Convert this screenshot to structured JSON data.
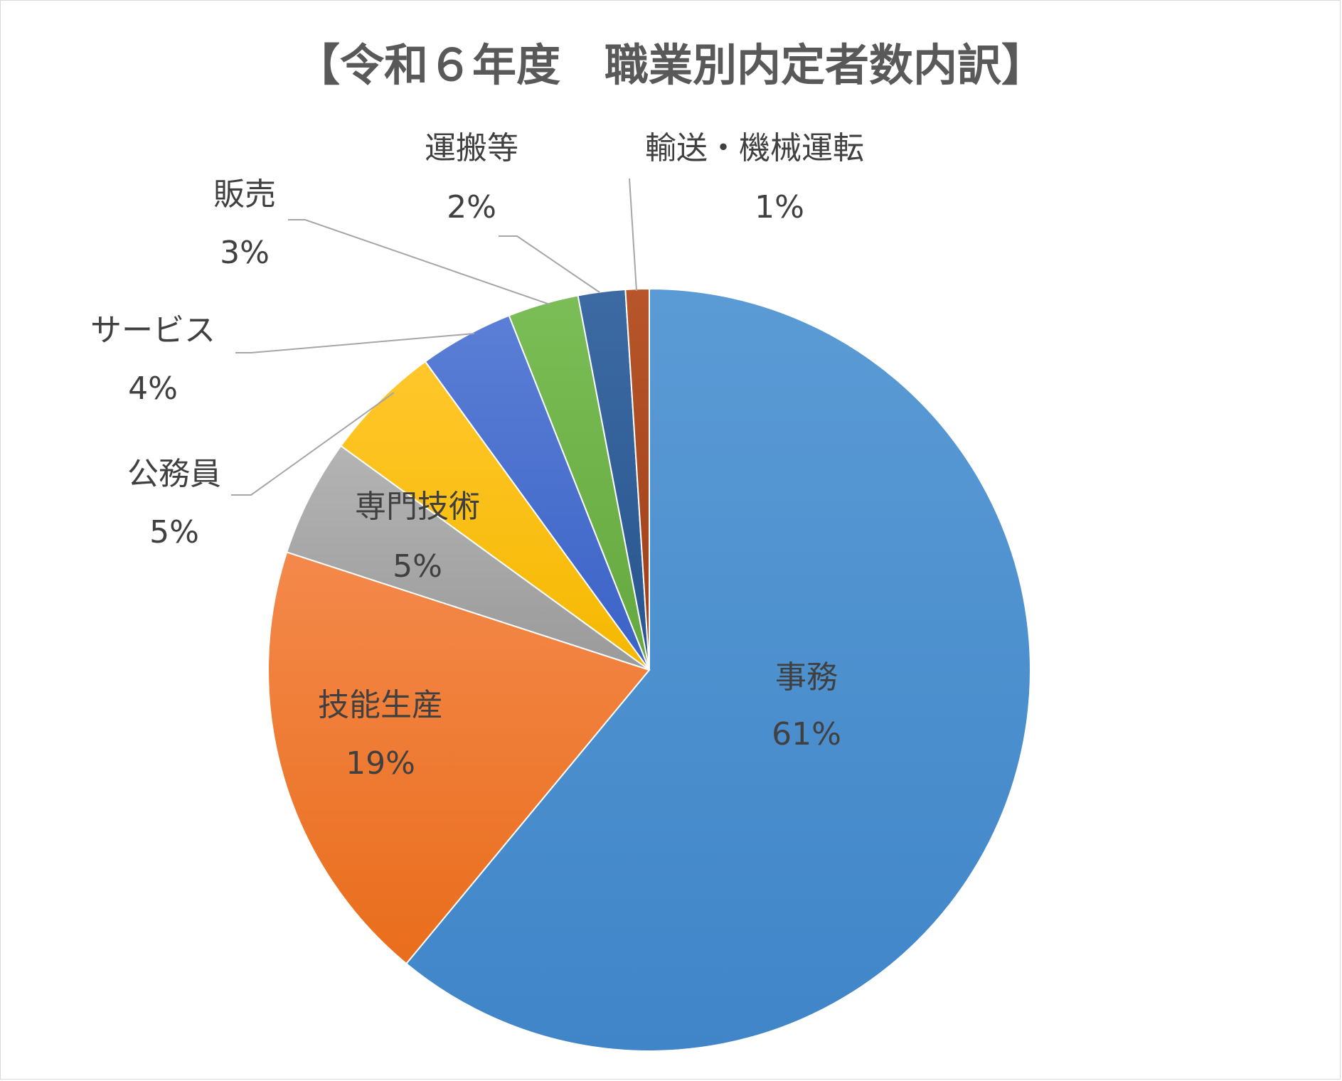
{
  "chart_data": {
    "type": "pie",
    "title": "【令和６年度　職業別内定者数内訳】",
    "start_angle_deg": 0,
    "direction": "clockwise",
    "slices": [
      {
        "name": "事務",
        "value": 61,
        "label": "61%",
        "color": "#5b9bd5",
        "color_dark": "#3f85c8"
      },
      {
        "name": "技能生産",
        "value": 19,
        "label": "19%",
        "color": "#f4894b",
        "color_dark": "#e96d1c"
      },
      {
        "name": "専門技術",
        "value": 5,
        "label": "5%",
        "color": "#b4b4b4",
        "color_dark": "#9a9a9a"
      },
      {
        "name": "公務員",
        "value": 5,
        "label": "5%",
        "color": "#ffc72c",
        "color_dark": "#f5b800"
      },
      {
        "name": "サービス",
        "value": 4,
        "label": "4%",
        "color": "#5b7fd6",
        "color_dark": "#3a62c6"
      },
      {
        "name": "販売",
        "value": 3,
        "label": "3%",
        "color": "#7bbd56",
        "color_dark": "#64a83e"
      },
      {
        "name": "運搬等",
        "value": 2,
        "label": "2%",
        "color": "#3d6aa3",
        "color_dark": "#28558e"
      },
      {
        "name": "輸送・機械運転",
        "value": 1,
        "label": "1%",
        "color": "#b8552a",
        "color_dark": "#9c3f18"
      }
    ]
  }
}
